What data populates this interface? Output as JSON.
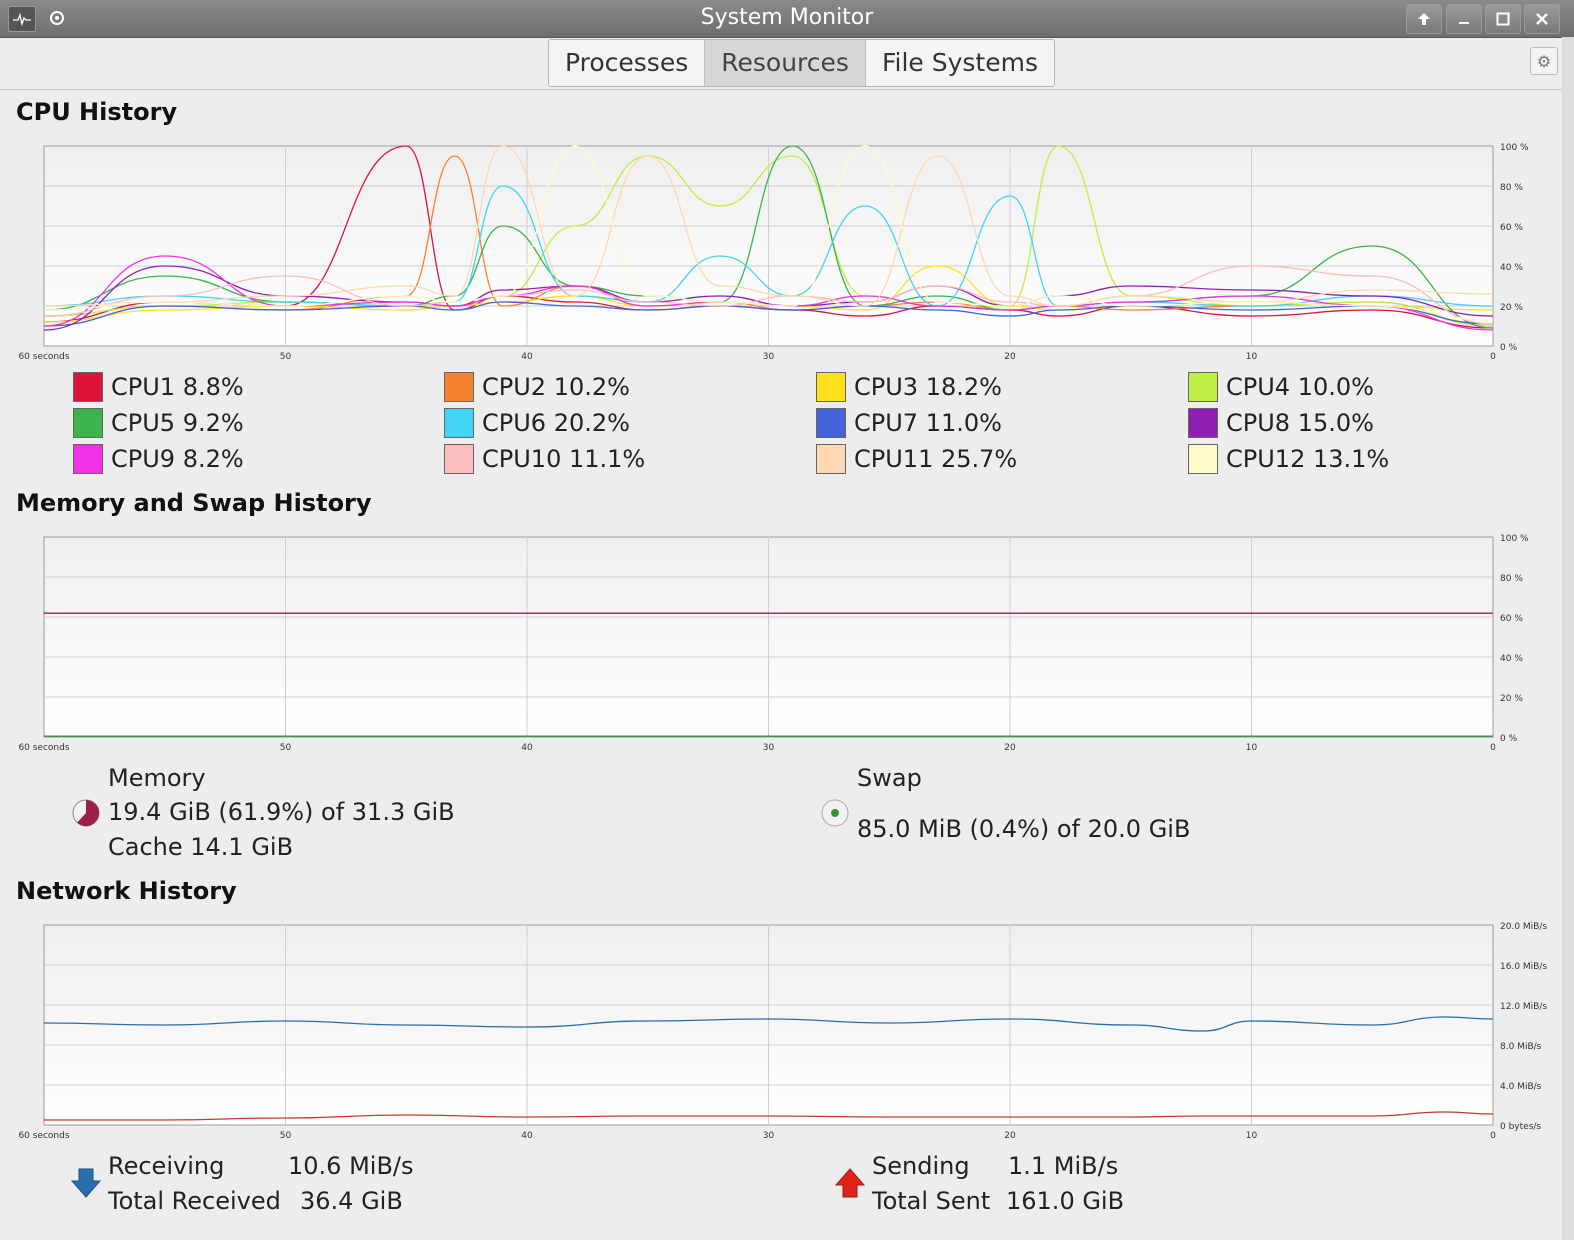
{
  "window": {
    "title": "System Monitor",
    "left_icons": [
      "app-icon",
      "menu-icon"
    ],
    "buttons": [
      "keep-above-icon",
      "minimize-icon",
      "maximize-icon",
      "close-icon"
    ]
  },
  "tabs": [
    {
      "label": "Processes",
      "active": false
    },
    {
      "label": "Resources",
      "active": true
    },
    {
      "label": "File Systems",
      "active": false
    }
  ],
  "axis": {
    "x_ticks": [
      "60 seconds",
      "50",
      "40",
      "30",
      "20",
      "10",
      "0"
    ],
    "percent_ticks": [
      "100 %",
      "80 %",
      "60 %",
      "40 %",
      "20 %",
      "0 %"
    ],
    "network_ticks": [
      "20.0 MiB/s",
      "16.0 MiB/s",
      "12.0 MiB/s",
      "8.0 MiB/s",
      "4.0 MiB/s",
      "0 bytes/s"
    ]
  },
  "cpu": {
    "title": "CPU History",
    "legend": [
      {
        "label": "CPU1 8.8%",
        "color": "#dc143c"
      },
      {
        "label": "CPU2 10.2%",
        "color": "#f58231"
      },
      {
        "label": "CPU3 18.2%",
        "color": "#ffe119"
      },
      {
        "label": "CPU4 10.0%",
        "color": "#bfef45"
      },
      {
        "label": "CPU5 9.2%",
        "color": "#3cb44b"
      },
      {
        "label": "CPU6 20.2%",
        "color": "#42d4f4"
      },
      {
        "label": "CPU7 11.0%",
        "color": "#4363d8"
      },
      {
        "label": "CPU8 15.0%",
        "color": "#911eb4"
      },
      {
        "label": "CPU9 8.2%",
        "color": "#f032e6"
      },
      {
        "label": "CPU10 11.1%",
        "color": "#fabebe"
      },
      {
        "label": "CPU11 25.7%",
        "color": "#ffd8b1"
      },
      {
        "label": "CPU12 13.1%",
        "color": "#fffac8"
      }
    ]
  },
  "memory": {
    "title": "Memory and Swap History",
    "memory_label": "Memory",
    "memory_value": "19.4 GiB (61.9%) of 31.3 GiB",
    "cache_value": "Cache 14.1 GiB",
    "memory_color": "#9c1e4b",
    "memory_fraction": 0.619,
    "swap_label": "Swap",
    "swap_value": "85.0 MiB (0.4%) of 20.0 GiB",
    "swap_color": "#3a8f3a",
    "swap_fraction": 0.004
  },
  "network": {
    "title": "Network History",
    "receiving_label": "Receiving",
    "receiving_value": "10.6 MiB/s",
    "total_received_label": "Total Received",
    "total_received_value": "36.4 GiB",
    "receiving_color": "#2a6fad",
    "sending_label": "Sending",
    "sending_value": "1.1 MiB/s",
    "total_sent_label": "Total Sent",
    "total_sent_value": "161.0 GiB",
    "sending_color": "#c0392b"
  },
  "chart_data": [
    {
      "type": "line",
      "title": "CPU History",
      "xlabel": "",
      "ylabel": "",
      "x_ticks": [
        "60 seconds",
        "50",
        "40",
        "30",
        "20",
        "10",
        "0"
      ],
      "ylim": [
        0,
        100
      ],
      "x": [
        60,
        55,
        50,
        45,
        43,
        41,
        38,
        35,
        32,
        29,
        26,
        23,
        20,
        18,
        15,
        10,
        5,
        0
      ],
      "series": [
        {
          "name": "CPU1",
          "values": [
            12,
            22,
            20,
            100,
            18,
            25,
            22,
            18,
            20,
            18,
            15,
            20,
            18,
            15,
            20,
            15,
            18,
            9
          ]
        },
        {
          "name": "CPU2",
          "values": [
            15,
            20,
            18,
            25,
            95,
            20,
            30,
            20,
            22,
            18,
            20,
            22,
            18,
            20,
            18,
            20,
            22,
            10
          ]
        },
        {
          "name": "CPU3",
          "values": [
            12,
            18,
            20,
            18,
            20,
            22,
            25,
            20,
            22,
            20,
            18,
            40,
            20,
            18,
            20,
            22,
            20,
            18
          ]
        },
        {
          "name": "CPU4",
          "values": [
            15,
            20,
            22,
            20,
            20,
            25,
            60,
            95,
            70,
            95,
            25,
            20,
            20,
            100,
            25,
            20,
            22,
            10
          ]
        },
        {
          "name": "CPU5",
          "values": [
            18,
            35,
            22,
            20,
            25,
            60,
            30,
            25,
            22,
            100,
            20,
            25,
            18,
            20,
            22,
            25,
            50,
            9
          ]
        },
        {
          "name": "CPU6",
          "values": [
            20,
            25,
            22,
            20,
            22,
            80,
            25,
            22,
            45,
            25,
            70,
            20,
            75,
            20,
            22,
            20,
            25,
            20
          ]
        },
        {
          "name": "CPU7",
          "values": [
            10,
            20,
            18,
            20,
            18,
            22,
            20,
            18,
            20,
            18,
            20,
            18,
            15,
            18,
            20,
            18,
            20,
            11
          ]
        },
        {
          "name": "CPU8",
          "values": [
            8,
            40,
            25,
            22,
            20,
            28,
            30,
            22,
            25,
            20,
            22,
            30,
            20,
            25,
            30,
            28,
            25,
            15
          ]
        },
        {
          "name": "CPU9",
          "values": [
            10,
            45,
            20,
            22,
            20,
            25,
            30,
            20,
            22,
            20,
            25,
            20,
            18,
            20,
            22,
            25,
            20,
            8
          ]
        },
        {
          "name": "CPU10",
          "values": [
            15,
            25,
            35,
            20,
            22,
            25,
            28,
            22,
            20,
            25,
            22,
            30,
            22,
            20,
            25,
            40,
            35,
            11
          ]
        },
        {
          "name": "CPU11",
          "values": [
            20,
            22,
            25,
            30,
            25,
            100,
            25,
            95,
            30,
            25,
            20,
            95,
            25,
            20,
            25,
            22,
            28,
            26
          ]
        },
        {
          "name": "CPU12",
          "values": [
            18,
            22,
            20,
            25,
            22,
            25,
            100,
            25,
            22,
            20,
            100,
            22,
            20,
            25,
            20,
            22,
            20,
            13
          ]
        }
      ]
    },
    {
      "type": "line",
      "title": "Memory and Swap History",
      "xlabel": "",
      "ylabel": "",
      "x_ticks": [
        "60 seconds",
        "50",
        "40",
        "30",
        "20",
        "10",
        "0"
      ],
      "ylim": [
        0,
        100
      ],
      "x": [
        60,
        0
      ],
      "series": [
        {
          "name": "Memory",
          "values": [
            61.9,
            61.9
          ]
        },
        {
          "name": "Swap",
          "values": [
            0.4,
            0.4
          ]
        }
      ]
    },
    {
      "type": "line",
      "title": "Network History",
      "xlabel": "",
      "ylabel": "",
      "x_ticks": [
        "60 seconds",
        "50",
        "40",
        "30",
        "20",
        "10",
        "0"
      ],
      "ylim": [
        0,
        20
      ],
      "y_unit": "MiB/s",
      "x": [
        60,
        55,
        50,
        45,
        40,
        35,
        30,
        25,
        20,
        15,
        12,
        10,
        5,
        2,
        0
      ],
      "series": [
        {
          "name": "Receiving",
          "values": [
            10.2,
            10.0,
            10.4,
            10.0,
            9.8,
            10.4,
            10.6,
            10.2,
            10.6,
            10.0,
            9.4,
            10.4,
            10.0,
            10.8,
            10.6
          ]
        },
        {
          "name": "Sending",
          "values": [
            0.5,
            0.5,
            0.7,
            1.0,
            0.8,
            0.9,
            0.9,
            0.8,
            0.8,
            0.8,
            0.9,
            0.9,
            0.9,
            1.3,
            1.1
          ]
        }
      ]
    }
  ]
}
